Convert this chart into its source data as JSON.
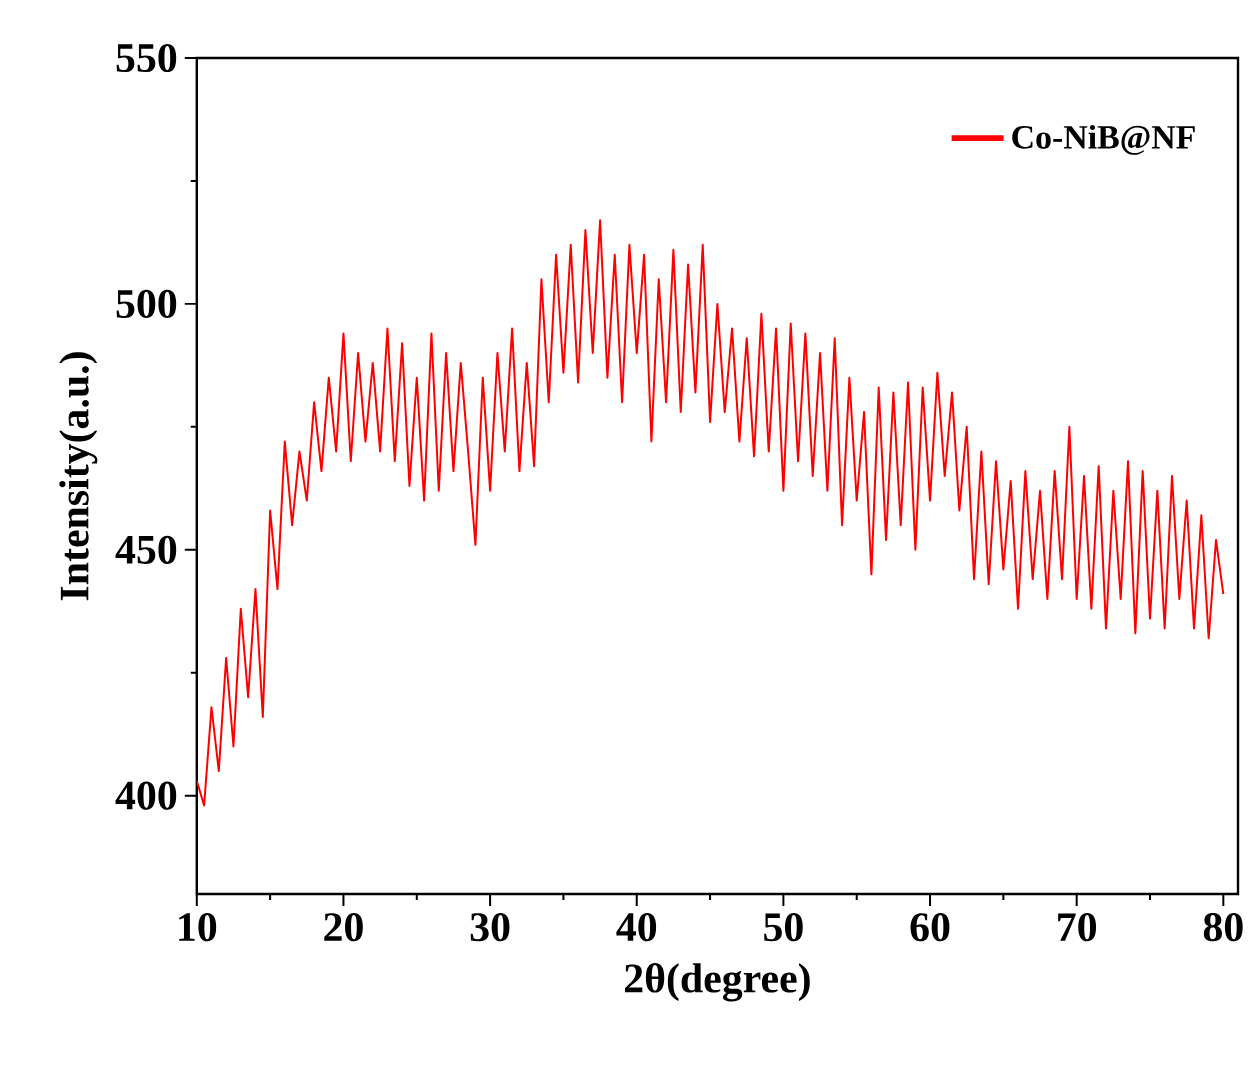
{
  "chart_data": {
    "type": "line",
    "xlabel": "2θ(degree)",
    "ylabel": "Intensity(a.u.)",
    "xlim": [
      10,
      81
    ],
    "ylim": [
      380,
      550
    ],
    "xticks": [
      10,
      20,
      30,
      40,
      50,
      60,
      70,
      80
    ],
    "yticks": [
      400,
      450,
      500,
      550
    ],
    "grid": false,
    "legend": "top right",
    "marker": "none",
    "line_style": "solid",
    "x": [
      10,
      10.5,
      11,
      11.5,
      12,
      12.5,
      13,
      13.5,
      14,
      14.5,
      15,
      15.5,
      16,
      16.5,
      17,
      17.5,
      18,
      18.5,
      19,
      19.5,
      20,
      20.5,
      21,
      21.5,
      22,
      22.5,
      23,
      23.5,
      24,
      24.5,
      25,
      25.5,
      26,
      26.5,
      27,
      27.5,
      28,
      28.5,
      29,
      29.5,
      30,
      30.5,
      31,
      31.5,
      32,
      32.5,
      33,
      33.5,
      34,
      34.5,
      35,
      35.5,
      36,
      36.5,
      37,
      37.5,
      38,
      38.5,
      39,
      39.5,
      40,
      40.5,
      41,
      41.5,
      42,
      42.5,
      43,
      43.5,
      44,
      44.5,
      45,
      45.5,
      46,
      46.5,
      47,
      47.5,
      48,
      48.5,
      49,
      49.5,
      50,
      50.5,
      51,
      51.5,
      52,
      52.5,
      53,
      53.5,
      54,
      54.5,
      55,
      55.5,
      56,
      56.5,
      57,
      57.5,
      58,
      58.5,
      59,
      59.5,
      60,
      60.5,
      61,
      61.5,
      62,
      62.5,
      63,
      63.5,
      64,
      64.5,
      65,
      65.5,
      66,
      66.5,
      67,
      67.5,
      68,
      68.5,
      69,
      69.5,
      70,
      70.5,
      71,
      71.5,
      72,
      72.5,
      73,
      73.5,
      74,
      74.5,
      75,
      75.5,
      76,
      76.5,
      77,
      77.5,
      78,
      78.5,
      79,
      79.5,
      80
    ],
    "series": [
      {
        "name": "Co-NiB@NF",
        "color": "#ff0000",
        "values": [
          403,
          398,
          418,
          405,
          428,
          410,
          438,
          420,
          442,
          416,
          458,
          442,
          472,
          455,
          470,
          460,
          480,
          466,
          485,
          470,
          494,
          468,
          490,
          472,
          488,
          470,
          495,
          468,
          492,
          463,
          485,
          460,
          494,
          462,
          490,
          466,
          488,
          470,
          451,
          485,
          462,
          490,
          470,
          495,
          466,
          488,
          467,
          505,
          480,
          510,
          486,
          512,
          484,
          515,
          490,
          517,
          485,
          510,
          480,
          512,
          490,
          510,
          472,
          505,
          480,
          511,
          478,
          508,
          482,
          512,
          476,
          500,
          478,
          495,
          472,
          493,
          469,
          498,
          470,
          495,
          462,
          496,
          468,
          494,
          465,
          490,
          462,
          493,
          455,
          485,
          460,
          478,
          445,
          483,
          452,
          482,
          455,
          484,
          450,
          483,
          460,
          486,
          465,
          482,
          458,
          475,
          444,
          470,
          443,
          468,
          446,
          464,
          438,
          466,
          444,
          462,
          440,
          466,
          444,
          475,
          440,
          465,
          438,
          467,
          434,
          462,
          440,
          468,
          433,
          466,
          436,
          462,
          434,
          465,
          440,
          460,
          434,
          457,
          432,
          452,
          441
        ]
      }
    ]
  }
}
